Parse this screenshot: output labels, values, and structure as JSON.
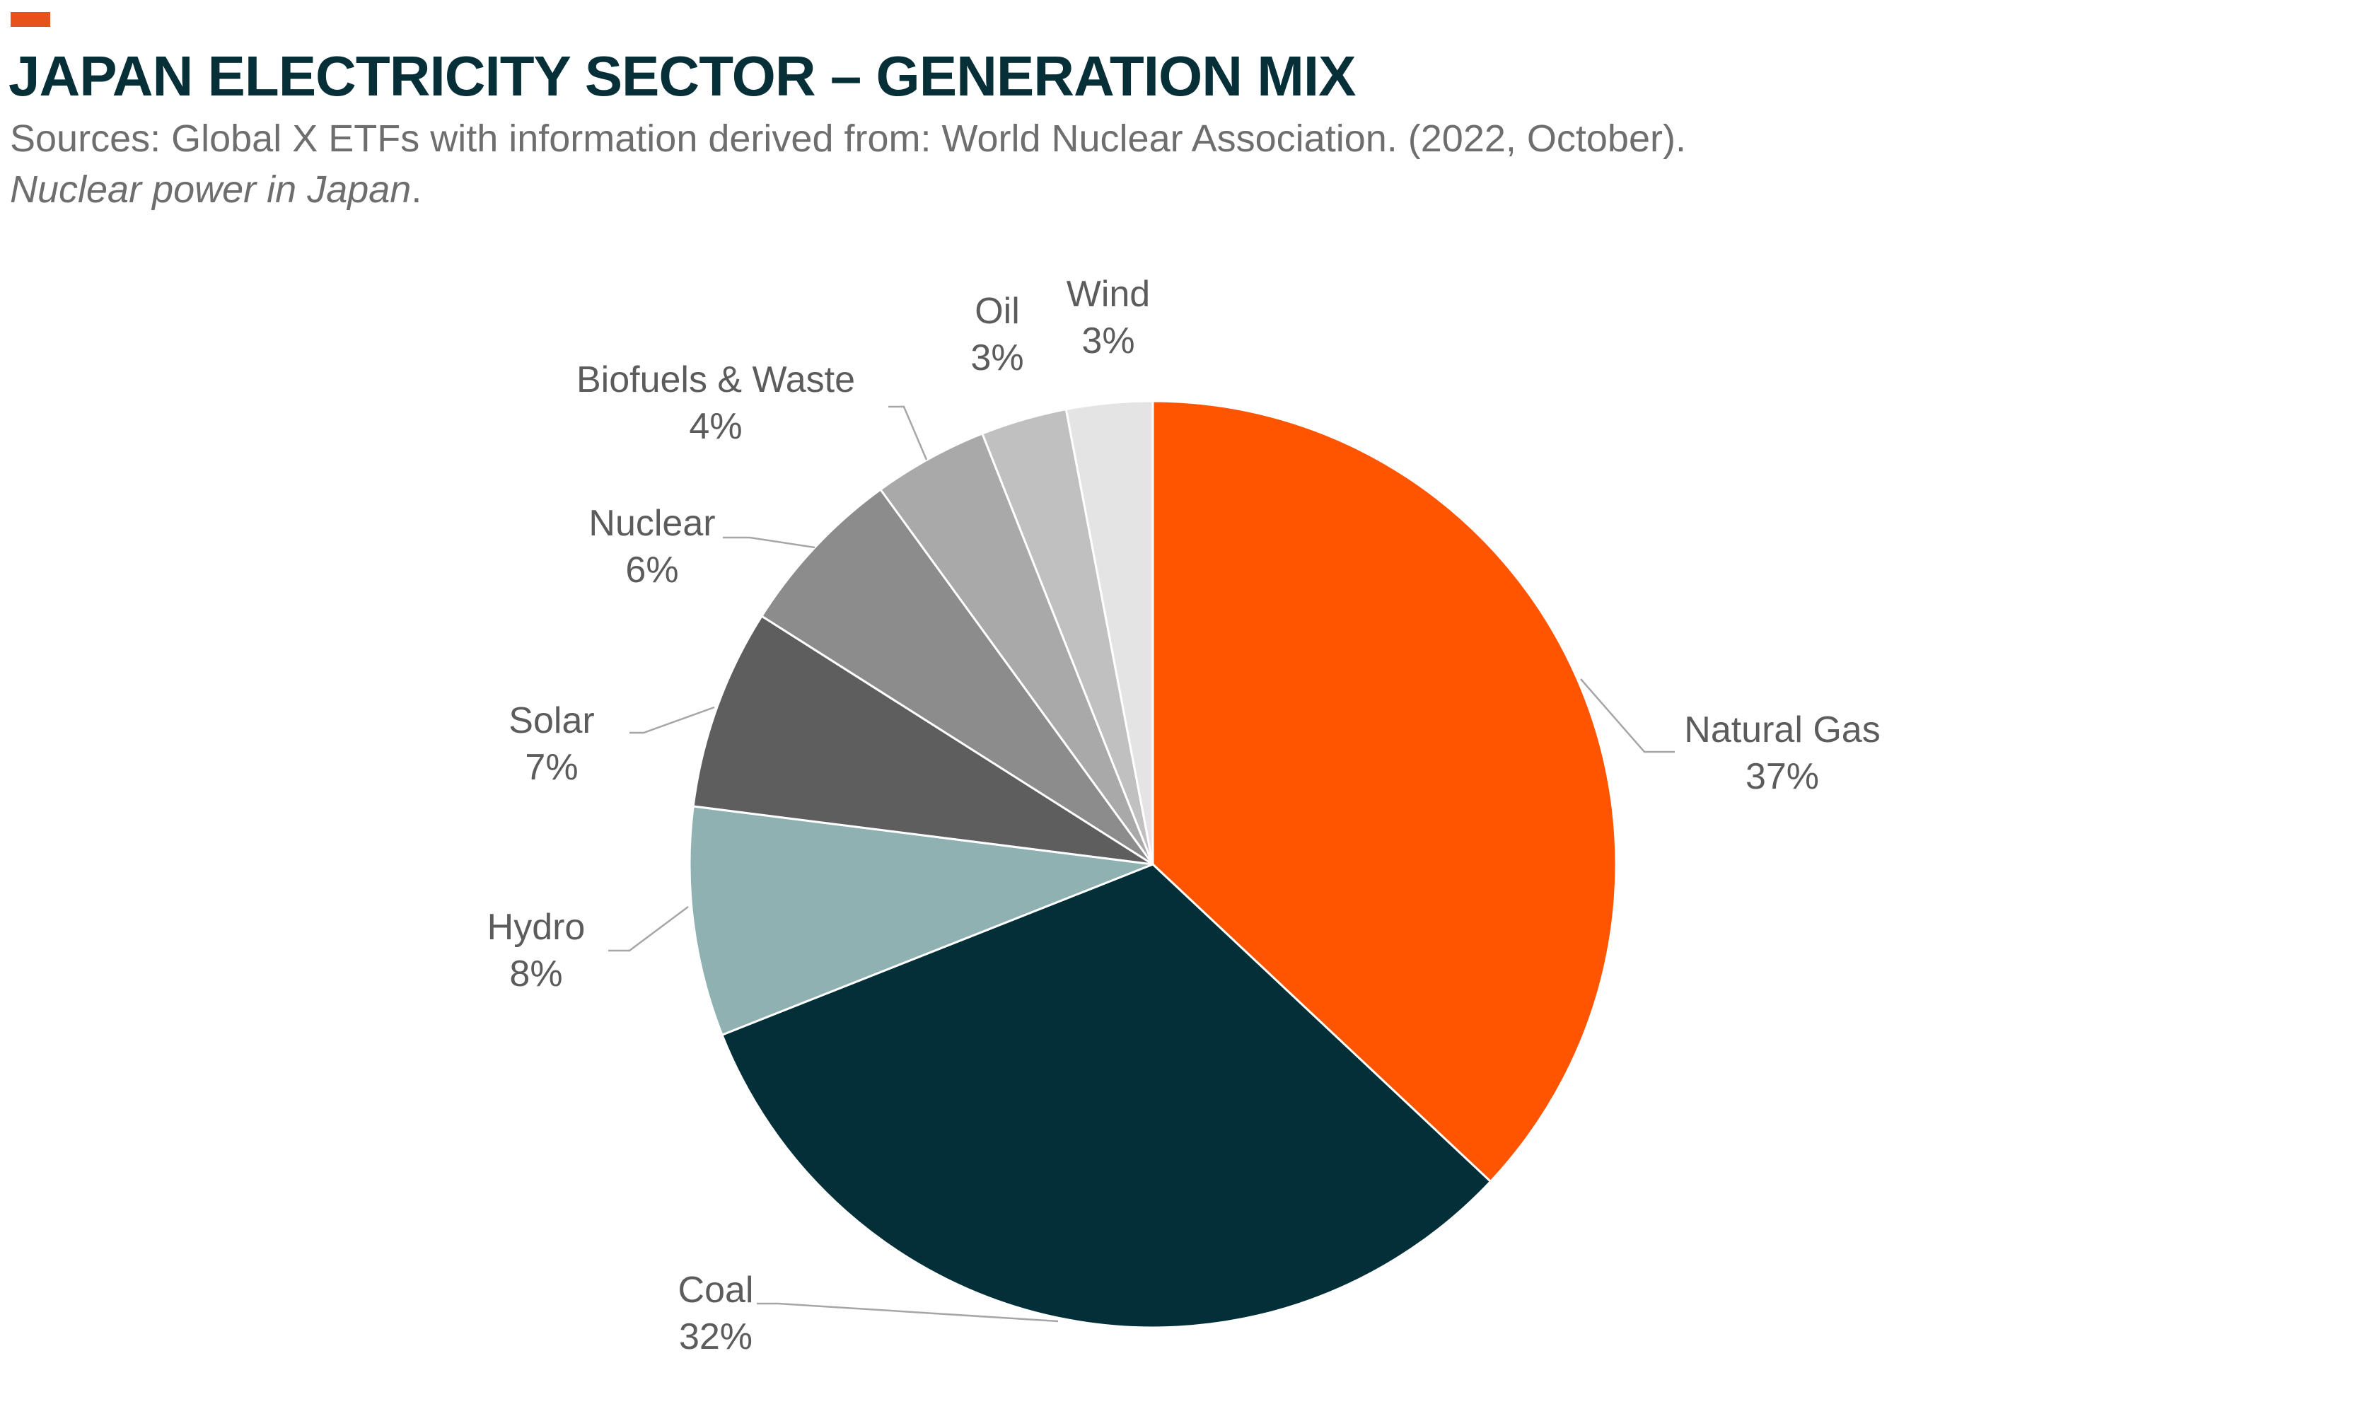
{
  "header": {
    "accent_color": "#e8511b",
    "title": "JAPAN ELECTRICITY SECTOR – GENERATION MIX",
    "source_line1": "Sources: Global X ETFs with information derived from: World Nuclear Association. (2022, October).",
    "source_line2_italic": "Nuclear power in Japan",
    "source_line2_tail": "."
  },
  "chart_data": {
    "type": "pie",
    "start": "12 o'clock",
    "direction": "clockwise",
    "label_style": "outside with leader lines",
    "slices": [
      {
        "label": "Natural Gas",
        "value": 37,
        "display": "37%",
        "color": "#ff5500"
      },
      {
        "label": "Coal",
        "value": 32,
        "display": "32%",
        "color": "#022f38"
      },
      {
        "label": "Hydro",
        "value": 8,
        "display": "8%",
        "color": "#8fb1b2"
      },
      {
        "label": "Solar",
        "value": 7,
        "display": "7%",
        "color": "#5e5e5e"
      },
      {
        "label": "Nuclear",
        "value": 6,
        "display": "6%",
        "color": "#8c8c8c"
      },
      {
        "label": "Biofuels & Waste",
        "value": 4,
        "display": "4%",
        "color": "#a9a9a9"
      },
      {
        "label": "Oil",
        "value": 3,
        "display": "3%",
        "color": "#c0c0c0"
      },
      {
        "label": "Wind",
        "value": 3,
        "display": "3%",
        "color": "#e4e4e4"
      }
    ]
  }
}
